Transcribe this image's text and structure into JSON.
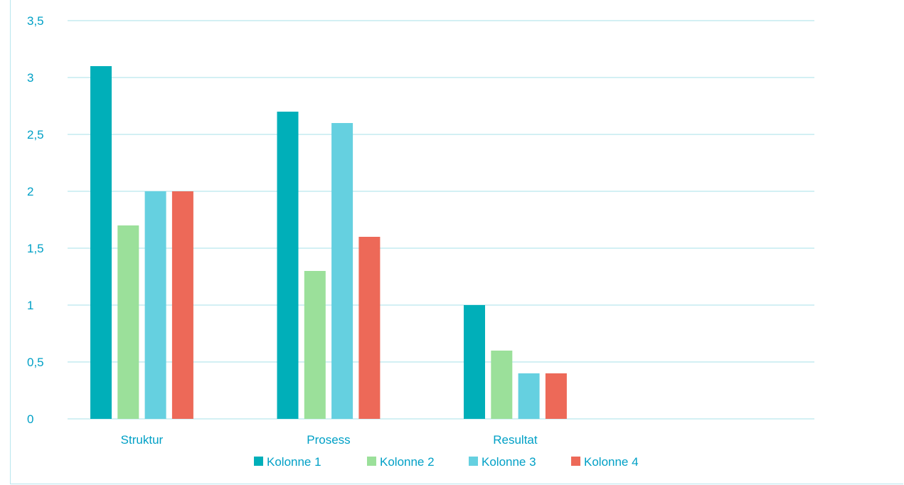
{
  "chart_data": {
    "type": "bar",
    "title": "",
    "xlabel": "",
    "ylabel": "",
    "categories": [
      "Struktur",
      "Prosess",
      "Resultat",
      ""
    ],
    "series": [
      {
        "name": "Kolonne 1",
        "color": "#00afb9",
        "values": [
          3.1,
          2.7,
          1.0,
          null
        ]
      },
      {
        "name": "Kolonne 2",
        "color": "#9be09a",
        "values": [
          1.7,
          1.3,
          0.6,
          null
        ]
      },
      {
        "name": "Kolonne 3",
        "color": "#65d0e0",
        "values": [
          2.0,
          2.6,
          0.4,
          null
        ]
      },
      {
        "name": "Kolonne 4",
        "color": "#ed6958",
        "values": [
          2.0,
          1.6,
          0.4,
          null
        ]
      }
    ],
    "ylim": [
      0,
      3.5
    ],
    "yticks": [
      0,
      0.5,
      1,
      1.5,
      2,
      2.5,
      3,
      3.5
    ],
    "ytick_labels": [
      "0",
      "0,5",
      "1",
      "1,5",
      "2",
      "2,5",
      "3",
      "3,5"
    ],
    "grid": true,
    "legend_position": "bottom",
    "text_color": "#00a0c6",
    "grid_color": "#b9e6ee"
  }
}
